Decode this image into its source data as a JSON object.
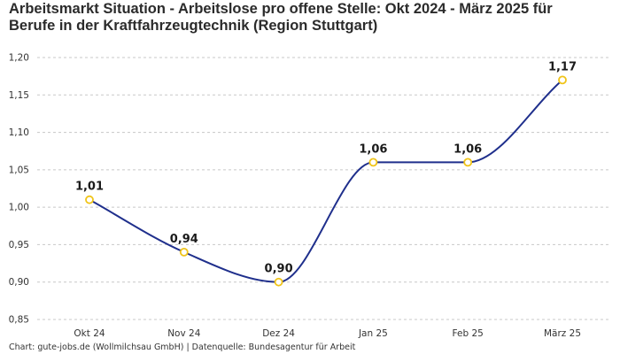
{
  "title_lines": [
    "Arbeitsmarkt Situation - Arbeitslose pro offene Stelle: Okt 2024 - März 2025 für",
    "Berufe in der Kraftfahrzeugtechnik (Region Stuttgart)"
  ],
  "footer": "Chart: gute-jobs.de (Wollmilchsau GmbH) | Datenquelle: Bundesagentur für Arbeit",
  "colors": {
    "line": "#1f2f8c",
    "marker_stroke": "#f0c419",
    "marker_fill": "#ffffff",
    "grid": "#c8c8c8"
  },
  "chart_data": {
    "type": "line",
    "categories": [
      "Okt 24",
      "Nov 24",
      "Dez 24",
      "Jan 25",
      "Feb 25",
      "März 25"
    ],
    "values": [
      1.01,
      0.94,
      0.9,
      1.06,
      1.06,
      1.17
    ],
    "data_labels": [
      "1,01",
      "0,94",
      "0,90",
      "1,06",
      "1,06",
      "1,17"
    ],
    "ylim": [
      0.85,
      1.2
    ],
    "yticks": [
      0.85,
      0.9,
      0.95,
      1.0,
      1.05,
      1.1,
      1.15,
      1.2
    ],
    "ytick_labels": [
      "0,85",
      "0,90",
      "0,95",
      "1,00",
      "1,05",
      "1,10",
      "1,15",
      "1,20"
    ],
    "grid": "horizontal dashed",
    "legend": "none",
    "line_style": "smooth"
  }
}
